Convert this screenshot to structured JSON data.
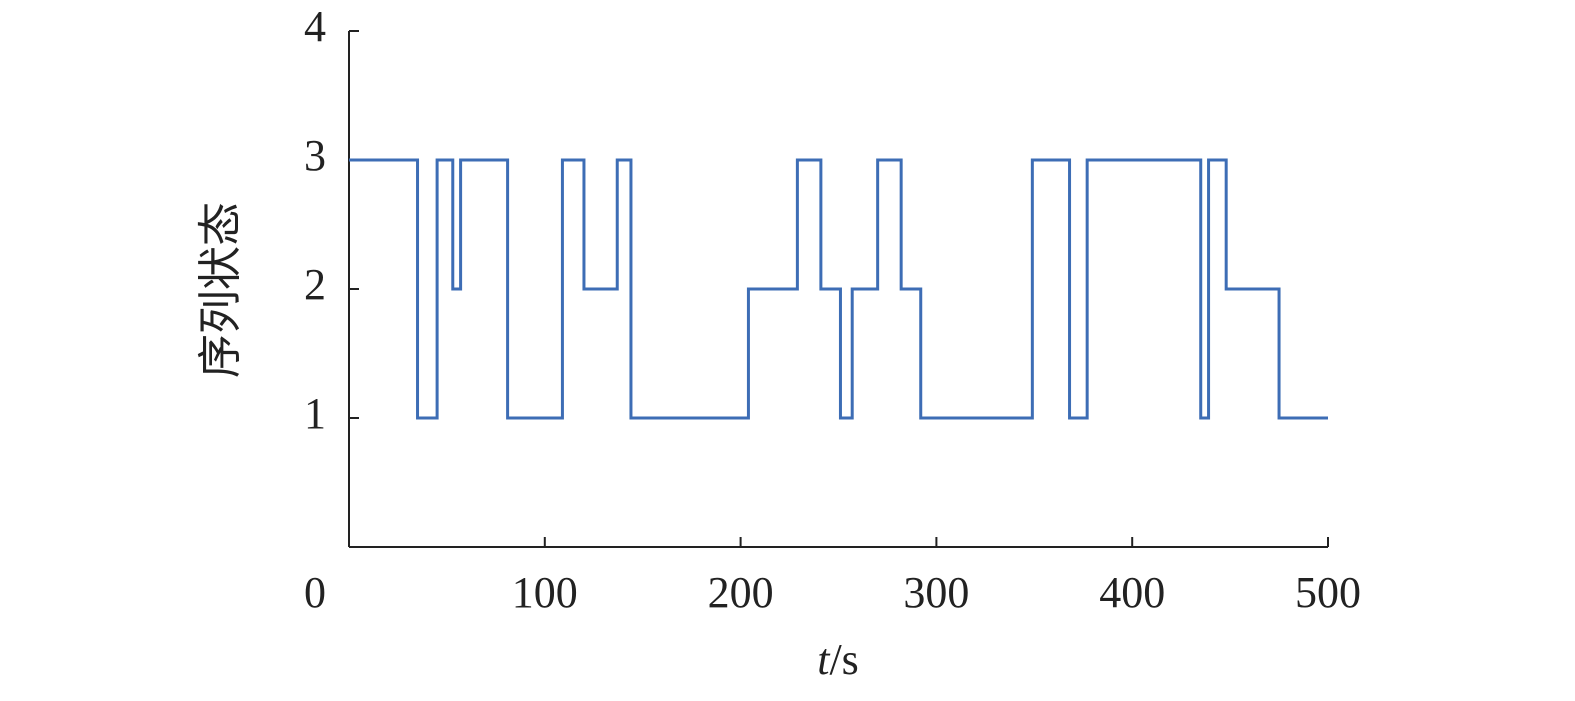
{
  "chart_data": {
    "type": "line",
    "drawstyle": "steps-post",
    "xlabel": "t/s",
    "ylabel": "序列状态",
    "x": [
      0,
      35,
      45,
      53,
      57,
      81,
      109,
      120,
      137,
      144,
      204,
      229,
      241,
      251,
      257,
      270,
      282,
      292,
      349,
      368,
      377,
      435,
      439,
      448,
      475,
      500
    ],
    "values": [
      3,
      1,
      3,
      2,
      3,
      1,
      3,
      2,
      3,
      1,
      2,
      3,
      2,
      1,
      2,
      3,
      2,
      1,
      3,
      1,
      3,
      1,
      3,
      2,
      1,
      1
    ],
    "color": "#3d6db5",
    "xlim": [
      0,
      500
    ],
    "xticks": [
      0,
      100,
      200,
      300,
      400,
      500
    ],
    "ylim": [
      0,
      4
    ],
    "yticks": [
      1,
      2,
      3,
      4
    ],
    "grid": false
  }
}
